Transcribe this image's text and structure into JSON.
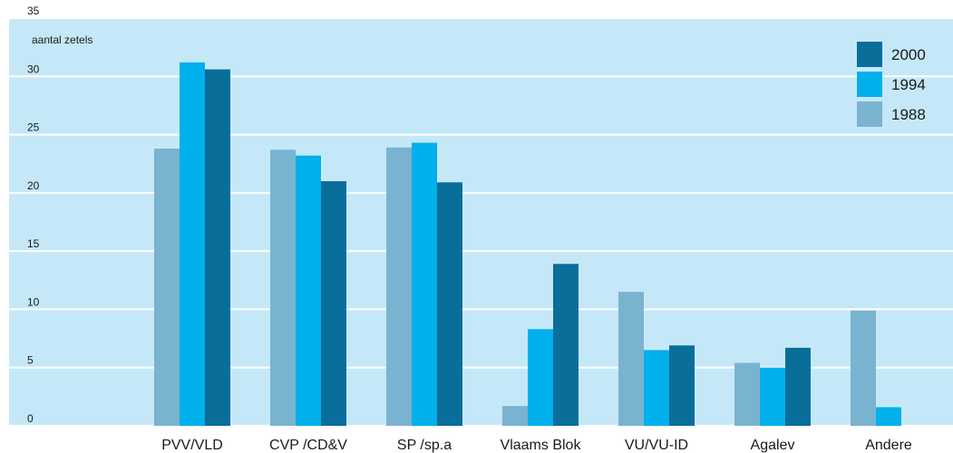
{
  "chart_data": {
    "type": "bar",
    "y_label": "aantal zetels",
    "categories": [
      "PVV/VLD",
      "CVP /CD&V",
      "SP /sp.a",
      "Vlaams Blok",
      "VU/VU-ID",
      "Agalev",
      "Andere"
    ],
    "series": [
      {
        "name": "1988",
        "color": "#7ab3d0",
        "values": [
          23.8,
          23.7,
          23.9,
          1.7,
          11.5,
          5.4,
          9.9
        ]
      },
      {
        "name": "1994",
        "color": "#00b0ec",
        "values": [
          31.2,
          23.2,
          24.3,
          8.3,
          6.5,
          5.0,
          1.6
        ]
      },
      {
        "name": "2000",
        "color": "#0a6e9a",
        "values": [
          30.6,
          21.0,
          20.9,
          13.9,
          6.9,
          6.7,
          0
        ]
      }
    ],
    "ylim": [
      0,
      35
    ],
    "yticks": [
      0,
      5,
      10,
      15,
      20,
      25,
      30,
      35
    ],
    "grid": true,
    "legend": "upper right"
  }
}
